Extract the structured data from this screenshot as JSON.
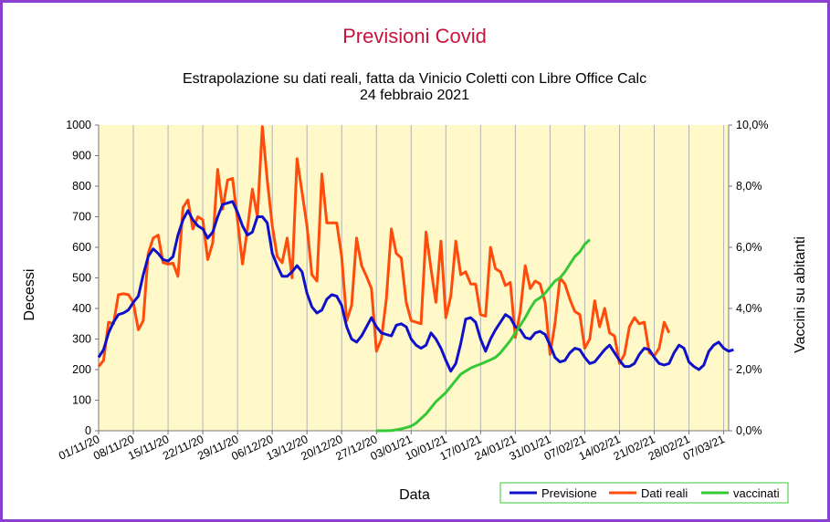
{
  "chart_data": {
    "type": "line",
    "title": "Previsioni Covid",
    "subtitle_line1": "Estrapolazione su dati reali, fatta da Vinicio Coletti con Libre Office Calc",
    "subtitle_line2": "24 febbraio 2021",
    "xlabel": "Data",
    "ylabel": "Decessi",
    "y2label": "Vaccini su abitanti",
    "x_start": "01/11/20",
    "x_end": "08/03/21",
    "ylim": [
      0,
      1000
    ],
    "y2lim": [
      0,
      0.1
    ],
    "yticks": [
      "0",
      "100",
      "200",
      "300",
      "400",
      "500",
      "600",
      "700",
      "800",
      "900",
      "1000"
    ],
    "y2ticks": [
      "0,0%",
      "2,0%",
      "4,0%",
      "6,0%",
      "8,0%",
      "10,0%"
    ],
    "xticks": [
      "01/11/20",
      "08/11/20",
      "15/11/20",
      "22/11/20",
      "29/11/20",
      "06/12/20",
      "13/12/20",
      "20/12/20",
      "27/12/20",
      "03/01/21",
      "10/01/21",
      "17/01/21",
      "24/01/21",
      "31/01/21",
      "07/02/21",
      "14/02/21",
      "21/02/21",
      "28/02/21",
      "07/03/21"
    ],
    "grid": "vertical",
    "legend": "bottom-right",
    "series": [
      {
        "name": "Previsione",
        "color": "#1010c8",
        "axis": "left",
        "x_start": "01/11/20",
        "values": [
          240,
          265,
          320,
          355,
          380,
          385,
          395,
          420,
          440,
          510,
          570,
          595,
          580,
          560,
          555,
          570,
          640,
          690,
          720,
          690,
          670,
          660,
          630,
          650,
          700,
          740,
          745,
          750,
          715,
          670,
          640,
          650,
          700,
          700,
          680,
          580,
          540,
          505,
          505,
          520,
          540,
          520,
          450,
          405,
          385,
          395,
          430,
          445,
          440,
          410,
          340,
          300,
          290,
          310,
          340,
          370,
          340,
          320,
          315,
          310,
          345,
          350,
          340,
          300,
          280,
          270,
          280,
          320,
          300,
          270,
          230,
          195,
          220,
          285,
          365,
          370,
          355,
          300,
          260,
          300,
          330,
          355,
          380,
          370,
          340,
          330,
          305,
          300,
          320,
          325,
          315,
          280,
          240,
          225,
          230,
          255,
          270,
          265,
          240,
          220,
          225,
          245,
          265,
          280,
          255,
          230,
          210,
          210,
          220,
          250,
          270,
          265,
          240,
          220,
          215,
          220,
          255,
          280,
          270,
          225,
          210,
          200,
          215,
          260,
          280,
          290,
          270,
          260,
          265
        ]
      },
      {
        "name": "Dati reali",
        "color": "#ff4c0c",
        "axis": "left",
        "x_start": "01/11/20",
        "values": [
          210,
          230,
          355,
          350,
          445,
          448,
          445,
          420,
          330,
          360,
          580,
          630,
          640,
          550,
          545,
          548,
          505,
          730,
          755,
          660,
          700,
          690,
          560,
          615,
          855,
          725,
          820,
          825,
          690,
          545,
          660,
          790,
          700,
          995,
          820,
          670,
          570,
          550,
          630,
          500,
          890,
          780,
          670,
          510,
          490,
          840,
          680,
          680,
          680,
          570,
          360,
          410,
          630,
          540,
          505,
          465,
          260,
          300,
          430,
          660,
          580,
          565,
          420,
          360,
          355,
          350,
          650,
          530,
          420,
          620,
          370,
          440,
          620,
          510,
          520,
          480,
          480,
          380,
          375,
          600,
          530,
          520,
          475,
          485,
          305,
          390,
          540,
          465,
          490,
          480,
          420,
          250,
          350,
          500,
          480,
          430,
          390,
          380,
          270,
          300,
          425,
          340,
          400,
          320,
          310,
          220,
          250,
          340,
          370,
          350,
          355,
          255,
          245,
          270,
          355,
          320
        ]
      },
      {
        "name": "vaccinati",
        "color": "#37c837",
        "axis": "right",
        "x_start": "27/12/20",
        "values": [
          0.0,
          0.0,
          0.0,
          0.0001,
          0.0003,
          0.0006,
          0.001,
          0.0015,
          0.0025,
          0.004,
          0.0055,
          0.0075,
          0.0095,
          0.011,
          0.0125,
          0.0145,
          0.0165,
          0.0185,
          0.0195,
          0.0205,
          0.0212,
          0.0218,
          0.0225,
          0.0232,
          0.024,
          0.0255,
          0.0275,
          0.0295,
          0.032,
          0.0345,
          0.037,
          0.04,
          0.0425,
          0.0435,
          0.045,
          0.047,
          0.049,
          0.05,
          0.052,
          0.0545,
          0.057,
          0.0585,
          0.061,
          0.0625
        ]
      }
    ]
  }
}
